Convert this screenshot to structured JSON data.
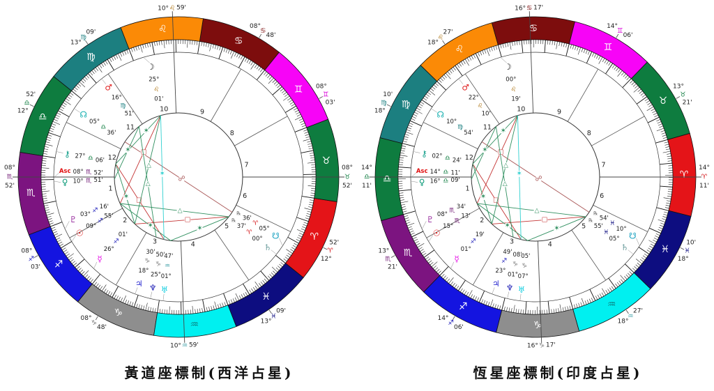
{
  "sign_order": [
    "ari",
    "tau",
    "gem",
    "can",
    "leo",
    "vir",
    "lib",
    "sco",
    "sag",
    "cap",
    "aqu",
    "pis"
  ],
  "signs": {
    "ari": {
      "name": "aries",
      "glyph": "♈",
      "color": "#e41418",
      "label_color": "#d41418"
    },
    "tau": {
      "name": "taurus",
      "glyph": "♉",
      "color": "#0e7c3f",
      "label_color": "#0e7c3f"
    },
    "gem": {
      "name": "gemini",
      "glyph": "♊",
      "color": "#f704f7",
      "label_color": "#d904d9"
    },
    "can": {
      "name": "cancer",
      "glyph": "♋",
      "color": "#7d0d0d",
      "label_color": "#7d0d0d"
    },
    "leo": {
      "name": "leo",
      "glyph": "♌",
      "color": "#fb8a06",
      "label_color": "#a86a00"
    },
    "vir": {
      "name": "virgo",
      "glyph": "♍",
      "color": "#1c7f80",
      "label_color": "#1c7f80"
    },
    "lib": {
      "name": "libra",
      "glyph": "♎",
      "color": "#0e7c3f",
      "label_color": "#0e7c3f"
    },
    "sco": {
      "name": "scorpio",
      "glyph": "♏",
      "color": "#7c1480",
      "label_color": "#6c1270"
    },
    "sag": {
      "name": "sagittarius",
      "glyph": "♐",
      "color": "#1414e0",
      "label_color": "#2222bb"
    },
    "cap": {
      "name": "capricorn",
      "glyph": "♑",
      "color": "#8e8e8e",
      "label_color": "#777777"
    },
    "aqu": {
      "name": "aquarius",
      "glyph": "♒",
      "color": "#00f0f0",
      "label_color": "#3fa0a8",
      "band_glyph_color": "#0c7f7f"
    },
    "pis": {
      "name": "pisces",
      "glyph": "♓",
      "color": "#0d0d80",
      "label_color": "#0d0d80"
    }
  },
  "planets": {
    "sun": {
      "glyph": "☉",
      "color": "#e01010"
    },
    "moon": {
      "glyph": "☽",
      "color": "#101010"
    },
    "mercury": {
      "glyph": "☿",
      "color": "#e512e5"
    },
    "venus": {
      "glyph": "♀",
      "color": "#0a9a78"
    },
    "mars": {
      "glyph": "♂",
      "color": "#e02020"
    },
    "jupiter": {
      "glyph": "♃",
      "color": "#2a2ad0"
    },
    "saturn": {
      "glyph": "♄",
      "color": "#6a9c9c"
    },
    "uranus": {
      "glyph": "♅",
      "color": "#19cfe0"
    },
    "neptune": {
      "glyph": "♆",
      "color": "#2626b8"
    },
    "pluto": {
      "glyph": "♇",
      "color": "#93229a"
    },
    "north-node": {
      "glyph": "☊",
      "color": "#17b0b0"
    },
    "south-node": {
      "glyph": "☋",
      "color": "#17a0c0"
    },
    "chiron": {
      "glyph": "⚷",
      "color": "#17a08c"
    },
    "asc": {
      "glyph": "Asc",
      "color": "#e01010",
      "text": true
    }
  },
  "aspect_types": {
    "square": {
      "color": "#c43333",
      "glyph": "□",
      "glyph_size": 9
    },
    "opposition": {
      "color": "#a85555",
      "glyph": "☍",
      "glyph_size": 10
    },
    "trine": {
      "color": "#2f8f5f",
      "glyph": "△",
      "glyph_size": 9
    },
    "sextile": {
      "color": "#2f8f5f",
      "glyph": "✶",
      "glyph_size": 10
    },
    "quincunx": {
      "color": "#2fd0d0",
      "glyph": "✶",
      "glyph_size": 10
    }
  },
  "aspects": [
    {
      "a": "north-node",
      "b": "south-node",
      "type": "opposition",
      "t": 0.53
    },
    {
      "a": "moon",
      "b": "pluto",
      "type": "square",
      "t": 0.42
    },
    {
      "a": "mercury",
      "b": "saturn",
      "type": "square",
      "t": 0.56
    },
    {
      "a": "chiron",
      "b": "neptune",
      "type": "square",
      "t": 0.48
    },
    {
      "a": "moon",
      "b": "mercury",
      "type": "trine",
      "t": 0.46
    },
    {
      "a": "mars",
      "b": "jupiter",
      "type": "trine",
      "t": 0.52
    },
    {
      "a": "pluto",
      "b": "saturn",
      "type": "trine",
      "t": 0.55
    },
    {
      "a": "moon",
      "b": "chiron",
      "type": "sextile",
      "t": 0.32
    },
    {
      "a": "mercury",
      "b": "chiron",
      "type": "sextile",
      "t": 0.45
    },
    {
      "a": "saturn",
      "b": "uranus",
      "type": "sextile",
      "t": 0.5
    },
    {
      "a": "uranus",
      "b": "pluto",
      "type": "sextile",
      "t": 0.4
    },
    {
      "a": "venus",
      "b": "mars",
      "type": "sextile",
      "t": 0.55
    },
    {
      "a": "moon",
      "b": "neptune",
      "type": "quincunx",
      "t": 0.47
    }
  ],
  "charts": [
    {
      "id": "tropical",
      "caption": "黃道座標制(西洋占星)",
      "asc_lon": 218.8667,
      "cusps": [
        {
          "num": 1,
          "lon": 218.8667,
          "deg": "08°",
          "sign": "sco",
          "min": "52'"
        },
        {
          "num": 2,
          "lon": 248.05,
          "deg": "08°",
          "sign": "sag",
          "min": "03'"
        },
        {
          "num": 3,
          "lon": 278.8,
          "deg": "08°",
          "sign": "cap",
          "min": "48'"
        },
        {
          "num": 4,
          "lon": 310.9833,
          "deg": "10°",
          "sign": "aqu",
          "min": "59'"
        },
        {
          "num": 5,
          "lon": 343.15,
          "deg": "13°",
          "sign": "pis",
          "min": "09'"
        },
        {
          "num": 6,
          "lon": 12.8667,
          "deg": "12°",
          "sign": "ari",
          "min": "52'"
        },
        {
          "num": 7,
          "lon": 38.8667,
          "deg": "08°",
          "sign": "tau",
          "min": "52'"
        },
        {
          "num": 8,
          "lon": 68.05,
          "deg": "08°",
          "sign": "gem",
          "min": "03'"
        },
        {
          "num": 9,
          "lon": 98.8,
          "deg": "08°",
          "sign": "can",
          "min": "48'"
        },
        {
          "num": 10,
          "lon": 130.9833,
          "deg": "10°",
          "sign": "leo",
          "min": "59'"
        },
        {
          "num": 11,
          "lon": 163.15,
          "deg": "13°",
          "sign": "vir",
          "min": "09'"
        },
        {
          "num": 12,
          "lon": 192.8667,
          "deg": "12°",
          "sign": "lib",
          "min": "52'"
        }
      ],
      "bodies": [
        {
          "name": "moon",
          "lon": 145.0167,
          "deg": "25°",
          "sign": "leo",
          "min": "01'"
        },
        {
          "name": "mars",
          "lon": 166.85,
          "deg": "16°",
          "sign": "vir",
          "min": "51'"
        },
        {
          "name": "north-node",
          "lon": 185.6,
          "deg": "05°",
          "sign": "lib",
          "min": "36'"
        },
        {
          "name": "chiron",
          "lon": 207.1,
          "deg": "27°",
          "sign": "lib",
          "min": "06'"
        },
        {
          "name": "asc",
          "lon": 218.8667,
          "deg": "08°",
          "sign": "sco",
          "min": "52'"
        },
        {
          "name": "venus",
          "lon": 220.85,
          "deg": "10°",
          "sign": "sco",
          "min": "51'"
        },
        {
          "name": "pluto",
          "lon": 243.2667,
          "deg": "03°",
          "sign": "sag",
          "min": "16'"
        },
        {
          "name": "sun",
          "lon": 249.9167,
          "deg": "09°",
          "sign": "sag",
          "min": "55'"
        },
        {
          "name": "mercury",
          "lon": 266.0167,
          "deg": "26°",
          "sign": "sag",
          "min": "01'"
        },
        {
          "name": "jupiter",
          "lon": 288.5,
          "deg": "18°",
          "sign": "cap",
          "min": "30'"
        },
        {
          "name": "neptune",
          "lon": 295.8333,
          "deg": "25°",
          "sign": "cap",
          "min": "50'"
        },
        {
          "name": "uranus",
          "lon": 301.7833,
          "deg": "01°",
          "sign": "aqu",
          "min": "47'"
        },
        {
          "name": "saturn",
          "lon": 0.6167,
          "deg": "00°",
          "sign": "ari",
          "min": "37'",
          "retro": true
        },
        {
          "name": "south-node",
          "lon": 5.6,
          "deg": "05°",
          "sign": "ari",
          "min": "36'",
          "retro": true
        }
      ]
    },
    {
      "id": "sidereal",
      "caption": "恆星座標制(印度占星)",
      "asc_lon": 194.1833,
      "cusps": [
        {
          "num": 1,
          "lon": 194.1833,
          "deg": "14°",
          "sign": "lib",
          "min": "11'"
        },
        {
          "num": 2,
          "lon": 223.35,
          "deg": "13°",
          "sign": "sco",
          "min": "21'"
        },
        {
          "num": 3,
          "lon": 254.1,
          "deg": "14°",
          "sign": "sag",
          "min": "06'"
        },
        {
          "num": 4,
          "lon": 286.2833,
          "deg": "16°",
          "sign": "cap",
          "min": "17'"
        },
        {
          "num": 5,
          "lon": 318.45,
          "deg": "18°",
          "sign": "aqu",
          "min": "27'"
        },
        {
          "num": 6,
          "lon": 348.1667,
          "deg": "18°",
          "sign": "pis",
          "min": "10'"
        },
        {
          "num": 7,
          "lon": 14.1833,
          "deg": "14°",
          "sign": "ari",
          "min": "11'"
        },
        {
          "num": 8,
          "lon": 43.35,
          "deg": "13°",
          "sign": "tau",
          "min": "21'"
        },
        {
          "num": 9,
          "lon": 74.1,
          "deg": "14°",
          "sign": "gem",
          "min": "06'"
        },
        {
          "num": 10,
          "lon": 106.2833,
          "deg": "16°",
          "sign": "can",
          "min": "17'"
        },
        {
          "num": 11,
          "lon": 138.45,
          "deg": "18°",
          "sign": "leo",
          "min": "27'"
        },
        {
          "num": 12,
          "lon": 168.1667,
          "deg": "18°",
          "sign": "vir",
          "min": "10'"
        }
      ],
      "bodies": [
        {
          "name": "moon",
          "lon": 120.3167,
          "deg": "00°",
          "sign": "leo",
          "min": "19'"
        },
        {
          "name": "mars",
          "lon": 142.1667,
          "deg": "22°",
          "sign": "leo",
          "min": "10'"
        },
        {
          "name": "north-node",
          "lon": 160.9,
          "deg": "10°",
          "sign": "vir",
          "min": "54'"
        },
        {
          "name": "chiron",
          "lon": 182.4,
          "deg": "02°",
          "sign": "lib",
          "min": "24'"
        },
        {
          "name": "asc",
          "lon": 194.1833,
          "deg": "14°",
          "sign": "lib",
          "min": "11'"
        },
        {
          "name": "venus",
          "lon": 196.15,
          "deg": "16°",
          "sign": "lib",
          "min": "09'"
        },
        {
          "name": "pluto",
          "lon": 218.5667,
          "deg": "08°",
          "sign": "sco",
          "min": "34'"
        },
        {
          "name": "sun",
          "lon": 225.2167,
          "deg": "15°",
          "sign": "sco",
          "min": "13'"
        },
        {
          "name": "mercury",
          "lon": 241.3167,
          "deg": "01°",
          "sign": "sag",
          "min": "19'"
        },
        {
          "name": "jupiter",
          "lon": 263.8167,
          "deg": "23°",
          "sign": "sag",
          "min": "49'"
        },
        {
          "name": "neptune",
          "lon": 271.1333,
          "deg": "01°",
          "sign": "cap",
          "min": "08'"
        },
        {
          "name": "uranus",
          "lon": 277.0833,
          "deg": "07°",
          "sign": "cap",
          "min": "05'"
        },
        {
          "name": "saturn",
          "lon": 335.9167,
          "deg": "05°",
          "sign": "pis",
          "min": "55'",
          "retro": true
        },
        {
          "name": "south-node",
          "lon": 340.9,
          "deg": "10°",
          "sign": "pis",
          "min": "54'",
          "retro": true
        }
      ]
    }
  ]
}
